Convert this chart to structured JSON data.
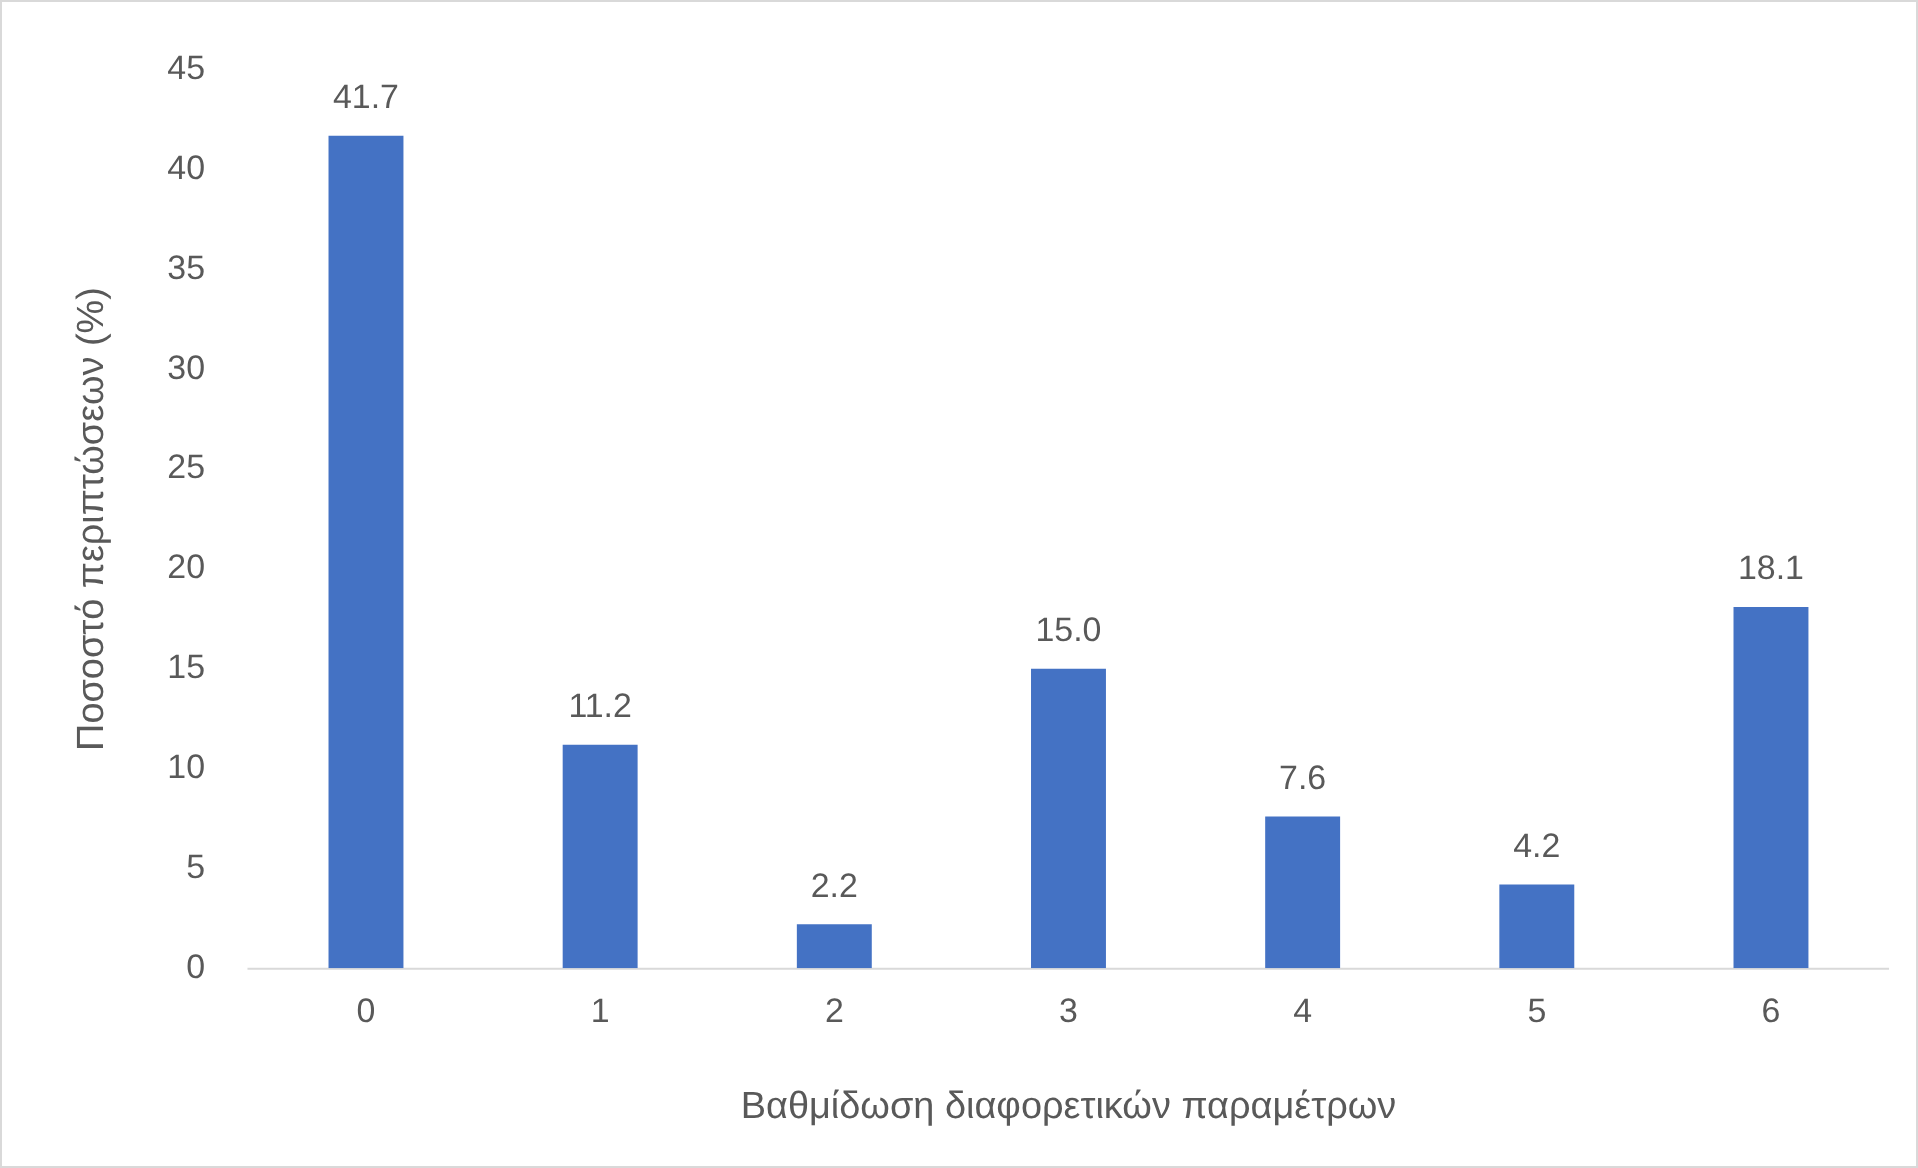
{
  "chart_data": {
    "type": "bar",
    "xlabel": "Βαθμίδωση διαφορετικών παραμέτρων",
    "ylabel": "Ποσοστό περιπτώσεων (%)",
    "categories": [
      "0",
      "1",
      "2",
      "3",
      "4",
      "5",
      "6"
    ],
    "values": [
      41.7,
      11.2,
      2.2,
      15.0,
      7.6,
      4.2,
      18.1
    ],
    "value_labels": [
      "41.7",
      "11.2",
      "2.2",
      "15.0",
      "7.6",
      "4.2",
      "18.1"
    ],
    "color": "#4472c4",
    "ylim": [
      0,
      45
    ],
    "yticks": [
      0,
      5,
      10,
      15,
      20,
      25,
      30,
      35,
      40,
      45
    ],
    "grid": false,
    "legend": false
  }
}
